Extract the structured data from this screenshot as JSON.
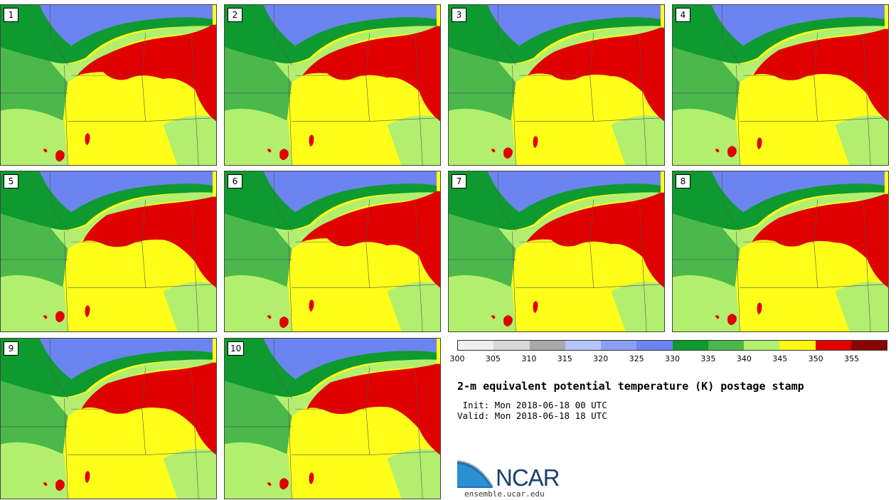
{
  "panels": [
    {
      "label": "1"
    },
    {
      "label": "2"
    },
    {
      "label": "3"
    },
    {
      "label": "4"
    },
    {
      "label": "5"
    },
    {
      "label": "6"
    },
    {
      "label": "7"
    },
    {
      "label": "8"
    },
    {
      "label": "9"
    },
    {
      "label": "10"
    }
  ],
  "colorbar": {
    "colors": [
      "#f0f0f0",
      "#d7d7d7",
      "#a9a9a9",
      "#b4c6fa",
      "#8aa0f5",
      "#6b84f0",
      "#0e9a2f",
      "#4ab84a",
      "#b3ef6e",
      "#fff714",
      "#e00000",
      "#8b0000"
    ],
    "ticks": [
      "300",
      "305",
      "310",
      "315",
      "320",
      "325",
      "330",
      "335",
      "340",
      "345",
      "350",
      "355"
    ]
  },
  "title": "2-m equivalent potential temperature (K) postage stamp",
  "init": " Init: Mon 2018-06-18 00 UTC",
  "valid": "Valid: Mon 2018-06-18 18 UTC",
  "logo": {
    "name": "NCAR",
    "url": "ensemble.ucar.edu"
  }
}
